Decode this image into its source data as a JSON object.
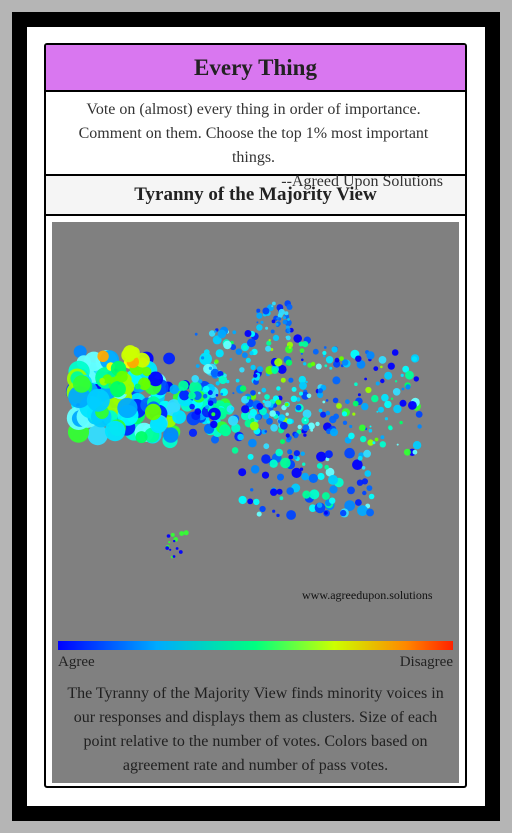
{
  "card": {
    "title": "Every Thing",
    "description": "Vote on (almost) every thing in order of importance. Comment on them. Choose the top 1% most important things.",
    "signature": "--Agreed Upon Solutions",
    "view_title": "Tyranny of the Majority View"
  },
  "visualization": {
    "watermark": "www.agreedupon.solutions",
    "scale_left_label": "Agree",
    "scale_right_label": "Disagree",
    "explanation": "The Tyranny of the Majority View finds minority voices in our responses and displays them as clusters. Size of each point relative to the number of votes. Colors based on agreement rate and number of pass votes.",
    "colors": {
      "agree": "#0000ff",
      "neutral": "#00ff80",
      "disagree": "#ff2200",
      "panel_background": "#808080",
      "title_background": "#d977f0"
    }
  }
}
